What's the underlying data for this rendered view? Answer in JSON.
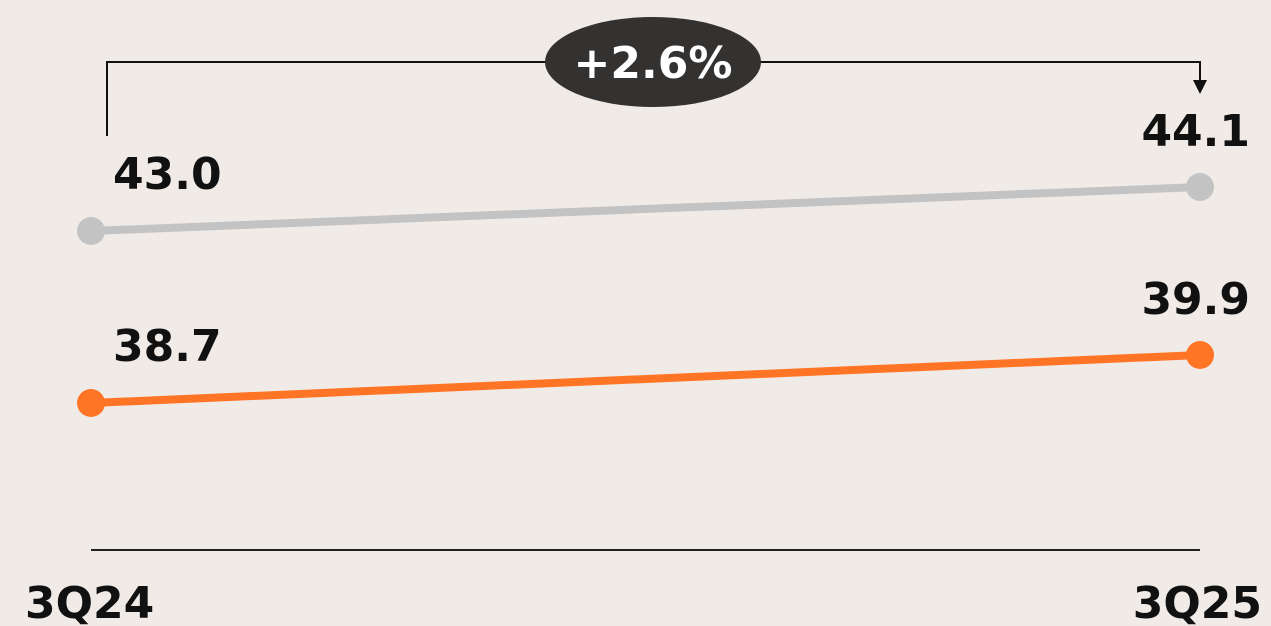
{
  "chart_data": {
    "type": "line",
    "categories": [
      "3Q24",
      "3Q25"
    ],
    "series": [
      {
        "color": "#c3c3c3",
        "values": [
          43.0,
          44.1
        ],
        "value_labels": [
          "43.0",
          "44.1"
        ]
      },
      {
        "color": "#ff7425",
        "values": [
          38.7,
          39.9
        ],
        "value_labels": [
          "38.7",
          "39.9"
        ]
      }
    ],
    "annotation": "+2.6%"
  }
}
